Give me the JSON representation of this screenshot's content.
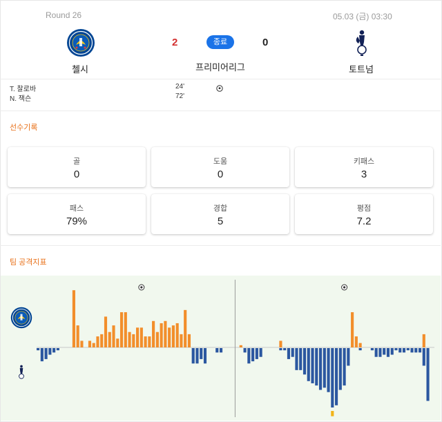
{
  "match": {
    "round": "Round 26",
    "datetime": "05.03 (금) 03:30",
    "status": "종료",
    "league": "프리미어리그",
    "home": {
      "name": "첼시",
      "score": "2",
      "logo_icon": "chelsea-crest-icon",
      "color": "#034694"
    },
    "away": {
      "name": "토트넘",
      "score": "0",
      "logo_icon": "tottenham-cockerel-icon",
      "color": "#132257"
    }
  },
  "scorers": [
    {
      "name": "T. 찰로바",
      "minute": "24'"
    },
    {
      "name": "N. 잭슨",
      "minute": "72'"
    }
  ],
  "player_record": {
    "title": "선수기록",
    "stats": [
      {
        "label": "골",
        "value": "0"
      },
      {
        "label": "도움",
        "value": "0"
      },
      {
        "label": "키패스",
        "value": "3"
      },
      {
        "label": "패스",
        "value": "79%"
      },
      {
        "label": "경합",
        "value": "5"
      },
      {
        "label": "평점",
        "value": "7.2"
      }
    ]
  },
  "attack_index": {
    "title": "팀 공격지표",
    "colors": {
      "home": "#f28e2b",
      "away": "#2b57a0",
      "highlight": "#f2b418",
      "background": "#f1f8ee"
    },
    "goal_minutes": [
      24,
      72
    ],
    "half_break_minute": 45
  },
  "chart_data": {
    "type": "bar",
    "x_unit": "minute",
    "home_values": [
      0,
      0,
      0,
      0,
      0,
      0,
      0,
      0,
      0,
      26,
      10,
      3,
      0,
      3,
      2,
      5,
      6,
      14,
      7,
      10,
      4,
      16,
      16,
      7,
      6,
      9,
      9,
      5,
      5,
      12,
      7,
      11,
      12,
      9,
      10,
      11,
      6,
      17,
      6,
      0,
      0,
      0,
      0,
      0,
      0,
      0,
      0,
      0,
      0,
      0,
      0,
      1,
      0,
      0,
      0,
      0,
      0,
      0,
      0,
      0,
      0,
      3,
      0,
      0,
      0,
      0,
      0,
      0,
      0,
      0,
      0,
      0,
      0,
      0,
      0,
      0,
      0,
      0,
      0,
      16,
      5,
      2,
      0,
      0,
      0,
      0,
      0,
      0,
      0,
      0,
      0,
      0,
      0,
      0,
      0,
      0,
      0,
      6,
      0,
      0
    ],
    "away_values": [
      -1,
      -6,
      -5,
      -3,
      -2,
      -1,
      0,
      0,
      0,
      0,
      0,
      0,
      0,
      0,
      0,
      0,
      0,
      0,
      0,
      0,
      0,
      0,
      0,
      0,
      0,
      0,
      0,
      0,
      0,
      0,
      0,
      0,
      0,
      0,
      0,
      0,
      0,
      0,
      0,
      -7,
      -7,
      -5,
      -7,
      0,
      0,
      -2,
      -2,
      0,
      0,
      0,
      0,
      0,
      -2,
      -7,
      -6,
      -5,
      -4,
      0,
      0,
      0,
      0,
      -1,
      -1,
      -5,
      -4,
      -10,
      -10,
      -12,
      -15,
      -16,
      -17,
      -19,
      -18,
      -20,
      -27,
      -26,
      -19,
      -17,
      -8,
      0,
      0,
      -1,
      0,
      0,
      -1,
      -4,
      -4,
      -3,
      -4,
      -3,
      -1,
      -2,
      -2,
      -1,
      -2,
      -2,
      -2,
      -8,
      -24,
      0
    ],
    "highlight_values": [
      {
        "minute": 74,
        "value": -3
      }
    ],
    "ylim": [
      -27,
      26
    ]
  }
}
